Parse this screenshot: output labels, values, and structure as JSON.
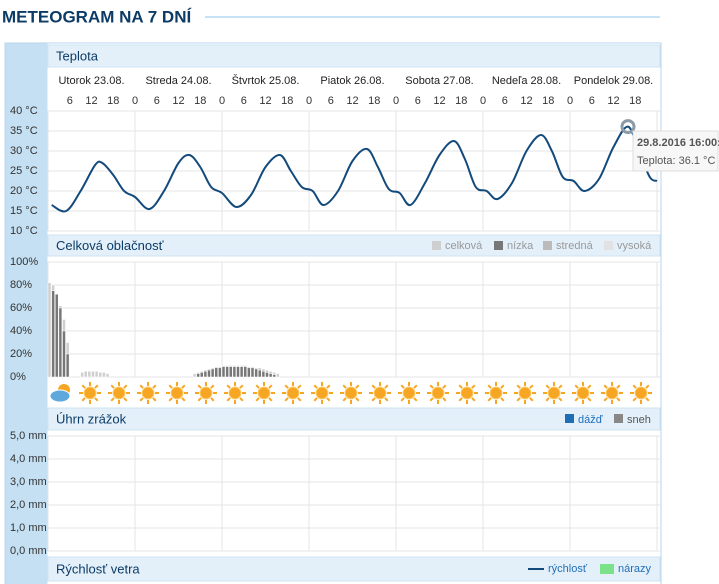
{
  "title": "METEOGRAM NA 7 DNÍ",
  "days": [
    {
      "label": "Utorok 23.08.",
      "hours": [
        6,
        12,
        18
      ]
    },
    {
      "label": "Streda 24.08.",
      "hours": [
        0,
        6,
        12,
        18
      ]
    },
    {
      "label": "Štvrtok 25.08.",
      "hours": [
        0,
        6,
        12,
        18
      ]
    },
    {
      "label": "Piatok 26.08.",
      "hours": [
        0,
        6,
        12,
        18
      ]
    },
    {
      "label": "Sobota 27.08.",
      "hours": [
        0,
        6,
        12,
        18
      ]
    },
    {
      "label": "Nedeľa 28.08.",
      "hours": [
        0,
        6,
        12,
        18
      ]
    },
    {
      "label": "Pondelok 29.08.",
      "hours": [
        0,
        6,
        12,
        18
      ]
    }
  ],
  "temperature": {
    "title": "Teplota",
    "type": "line",
    "color": "#134a7c",
    "x": [
      1,
      5,
      9,
      13,
      15,
      18,
      21,
      24,
      28,
      32,
      36,
      39,
      42,
      45,
      48,
      52,
      56,
      60,
      64,
      67,
      70,
      73,
      76,
      80,
      84,
      88,
      91,
      94,
      97,
      100,
      104,
      108,
      112,
      115,
      118,
      121,
      124,
      128,
      132,
      136,
      139,
      142,
      145,
      148,
      152,
      156,
      160,
      163,
      166,
      168
    ],
    "values": [
      16.5,
      15,
      20,
      26.5,
      27,
      24,
      20,
      18.5,
      15.5,
      20,
      27,
      29,
      26,
      21,
      19.5,
      16,
      19,
      26,
      29,
      25,
      21,
      20,
      16.5,
      20,
      27.5,
      30.5,
      26,
      20.5,
      19.5,
      16.5,
      22,
      29,
      32.5,
      28,
      21,
      20,
      18,
      22,
      30,
      34,
      30,
      23.5,
      22.5,
      20,
      23,
      31,
      36.1,
      30,
      23.5,
      22.5
    ],
    "xlim": [
      0,
      168
    ],
    "ylim": [
      10,
      40
    ],
    "yticks": [
      {
        "value": 10,
        "label": "10 °C"
      },
      {
        "value": 15,
        "label": "15 °C"
      },
      {
        "value": 20,
        "label": "20 °C"
      },
      {
        "value": 25,
        "label": "25 °C"
      },
      {
        "value": 30,
        "label": "30 °C"
      },
      {
        "value": 35,
        "label": "35 °C"
      },
      {
        "value": 40,
        "label": "40 °C"
      }
    ],
    "tooltip": {
      "point": 46,
      "title": "29.8.2016 16:00:",
      "text": "Teplota: 36.1 °C"
    }
  },
  "cloud": {
    "title": "Celková oblačnosť",
    "type": "bar",
    "ylim": [
      0,
      100
    ],
    "yticks": [
      {
        "value": 0,
        "label": "0%"
      },
      {
        "value": 20,
        "label": "20%"
      },
      {
        "value": 40,
        "label": "40%"
      },
      {
        "value": 60,
        "label": "60%"
      },
      {
        "value": 80,
        "label": "80%"
      },
      {
        "value": 100,
        "label": "100%"
      }
    ],
    "series": [
      {
        "name": "celková",
        "color": "#cfcfcf",
        "x": [
          0,
          1,
          2,
          3,
          4,
          5,
          9,
          10,
          11,
          12,
          13,
          14,
          15,
          16,
          40,
          41,
          42,
          43,
          44,
          45,
          46,
          47,
          48,
          49,
          50,
          51,
          52,
          53,
          54,
          55,
          56,
          57,
          58,
          59,
          60,
          61,
          62,
          63
        ],
        "values": [
          82,
          80,
          72,
          62,
          50,
          30,
          4,
          5,
          5,
          5,
          5,
          4,
          4,
          3,
          3,
          4,
          5,
          6,
          7,
          8,
          9,
          9,
          10,
          10,
          10,
          10,
          10,
          10,
          10,
          9,
          9,
          8,
          8,
          7,
          6,
          5,
          4,
          3
        ]
      },
      {
        "name": "nízka",
        "color": "#777777",
        "x": [
          1,
          2,
          3,
          4,
          5,
          41,
          42,
          43,
          44,
          45,
          46,
          47,
          48,
          49,
          50,
          51,
          52,
          53,
          54,
          55,
          56,
          57,
          58,
          59,
          60,
          61,
          62
        ],
        "values": [
          75,
          72,
          60,
          40,
          20,
          3,
          4,
          5,
          6,
          7,
          8,
          8,
          9,
          9,
          9,
          9,
          9,
          9,
          9,
          8,
          8,
          7,
          6,
          5,
          4,
          3,
          2
        ]
      },
      {
        "name": "stredná",
        "color": "#bbbbbb"
      },
      {
        "name": "vysoká",
        "color": "#e2e2e2"
      }
    ]
  },
  "precipitation": {
    "title": "Úhrn zrážok",
    "ylim": [
      0,
      5
    ],
    "yticks": [
      {
        "value": 0,
        "label": "0,0 mm"
      },
      {
        "value": 1,
        "label": "1,0 mm"
      },
      {
        "value": 2,
        "label": "2,0 mm"
      },
      {
        "value": 3,
        "label": "3,0 mm"
      },
      {
        "value": 4,
        "label": "4,0 mm"
      },
      {
        "value": 5,
        "label": "5,0 mm"
      }
    ],
    "series": [
      {
        "name": "dážď",
        "color": "#1e6fb8"
      },
      {
        "name": "sneh",
        "color": "#888888"
      }
    ]
  },
  "wind": {
    "title": "Rýchlosť vetra",
    "series": [
      {
        "name": "rýchlosť",
        "color": "#134a7c"
      },
      {
        "name": "nárazy",
        "color": "#7be28a"
      }
    ]
  }
}
